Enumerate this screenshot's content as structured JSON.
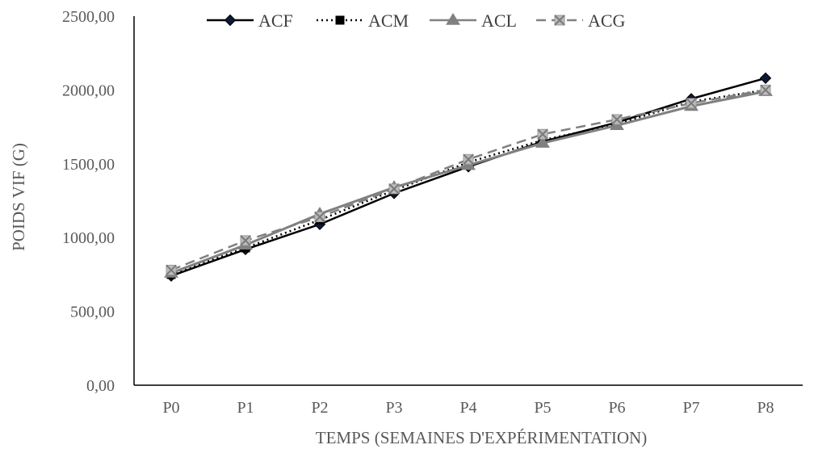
{
  "chart_data": {
    "type": "line",
    "title": "",
    "xlabel": "TEMPS (SEMAINES D'EXPÉRIMENTATION)",
    "ylabel": "POIDS VIF (G)",
    "ylim": [
      0,
      2500
    ],
    "yticks": [
      "0,00",
      "500,00",
      "1000,00",
      "1500,00",
      "2000,00",
      "2500,00"
    ],
    "ytick_values": [
      0,
      500,
      1000,
      1500,
      2000,
      2500
    ],
    "categories": [
      "P0",
      "P1",
      "P2",
      "P3",
      "P4",
      "P5",
      "P6",
      "P7",
      "P8"
    ],
    "grid": false,
    "legend_position": "top",
    "series": [
      {
        "name": "ACF",
        "values": [
          740,
          920,
          1090,
          1300,
          1480,
          1650,
          1780,
          1940,
          2080
        ],
        "color": "#000000",
        "dash": "solid",
        "marker": "diamond"
      },
      {
        "name": "ACM",
        "values": [
          750,
          930,
          1120,
          1320,
          1510,
          1660,
          1770,
          1920,
          2000
        ],
        "color": "#000000",
        "dash": "dotted",
        "marker": "square"
      },
      {
        "name": "ACL",
        "values": [
          760,
          950,
          1160,
          1340,
          1490,
          1640,
          1760,
          1890,
          1990
        ],
        "color": "#808080",
        "dash": "solid",
        "marker": "triangle"
      },
      {
        "name": "ACG",
        "values": [
          780,
          980,
          1140,
          1330,
          1530,
          1700,
          1800,
          1910,
          2000
        ],
        "color": "#808080",
        "dash": "dashed",
        "marker": "x"
      }
    ]
  }
}
